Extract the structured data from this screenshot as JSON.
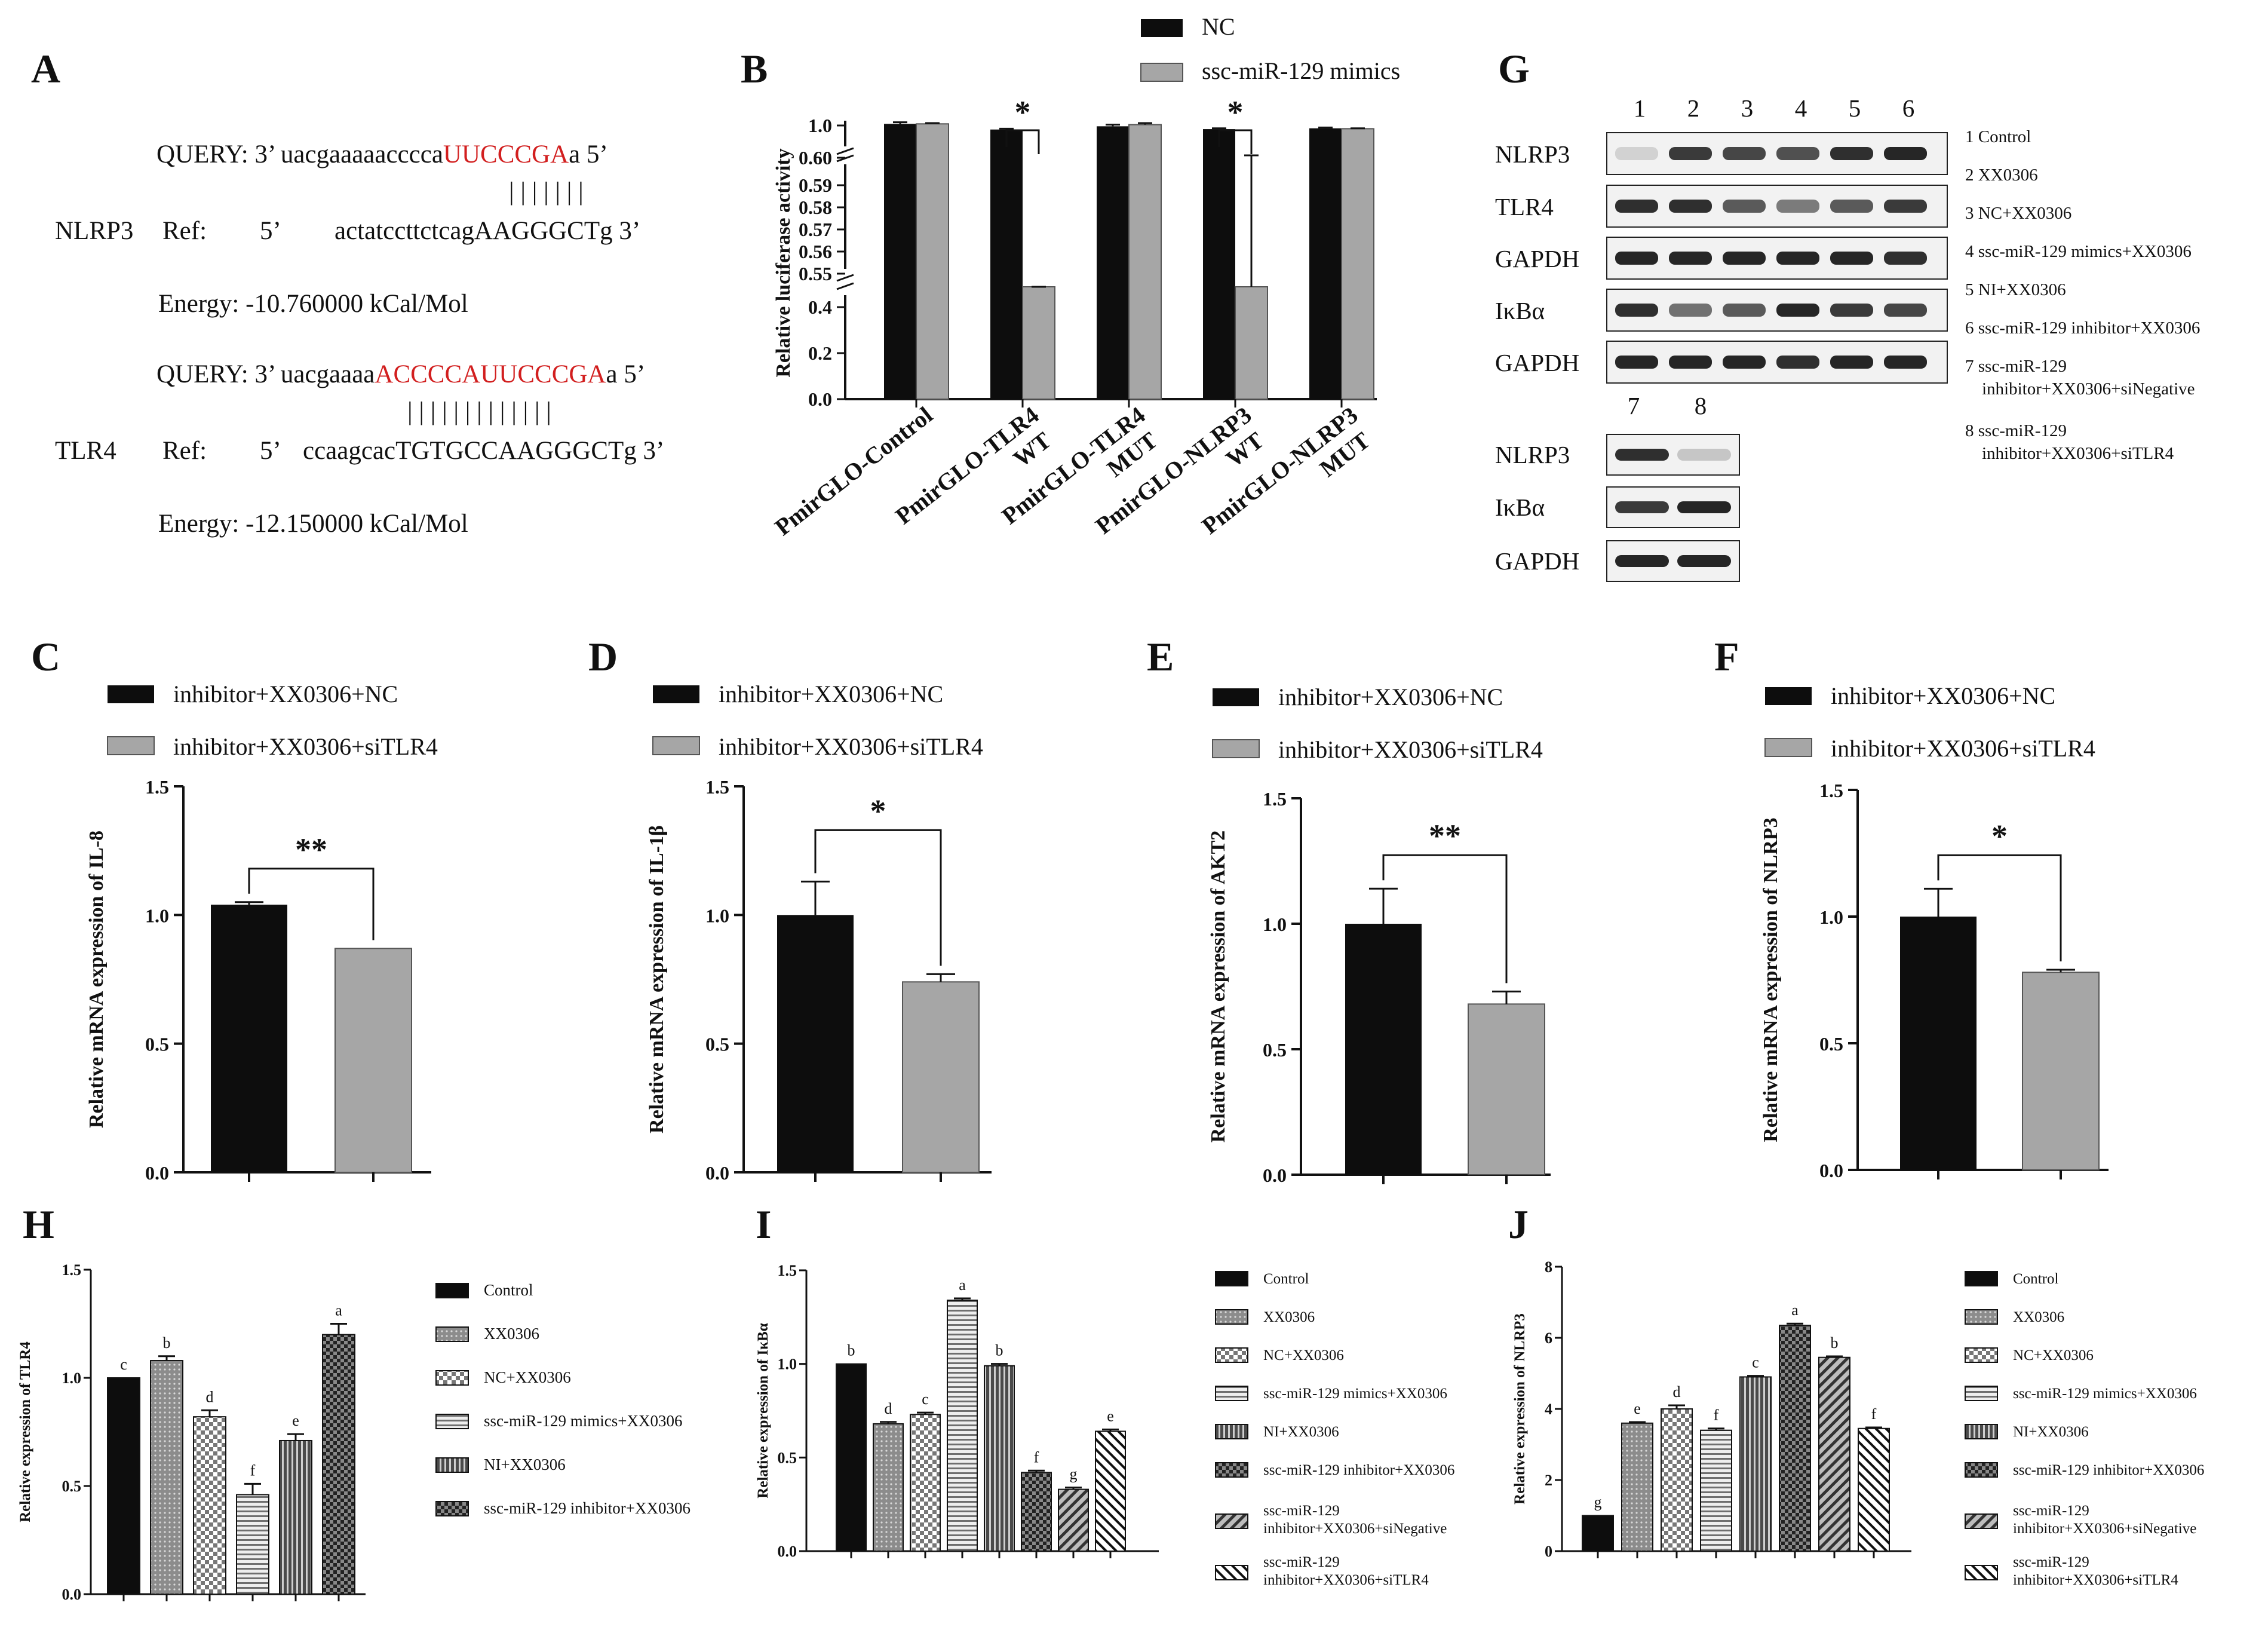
{
  "panel_letters": {
    "A": "A",
    "B": "B",
    "C": "C",
    "D": "D",
    "E": "E",
    "F": "F",
    "G": "G",
    "H": "H",
    "I": "I",
    "J": "J"
  },
  "panel_a": {
    "nlrp3": {
      "query_prefix": "QUERY: 3’",
      "query_seq_black": "uacgaaaaacccca",
      "query_seq_red": "UUCCCGA",
      "query_seq_end": "a",
      "query_end": "5’",
      "pairs": "| | | | | | |",
      "gene": "NLRP3",
      "ref_label": "Ref:",
      "ref_prefix": "5’",
      "ref_seq": "actatccttctcagAAGGGCTg",
      "ref_end": "3’",
      "energy": "Energy:  -10.760000 kCal/Mol"
    },
    "tlr4": {
      "query_prefix": "QUERY: 3’",
      "query_seq_black": "uacgaaaa",
      "query_seq_red": "ACCCCAUUCCCGA",
      "query_seq_end": "a",
      "query_end": "5’",
      "pairs": "| | | | | | | | | | | | |",
      "gene": "TLR4",
      "ref_label": "Ref:",
      "ref_prefix": "5’",
      "ref_seq": "ccaagcacTGTGCCAAGGGCTg",
      "ref_end": "3’",
      "energy": "Energy:  -12.150000 kCal/Mol"
    }
  },
  "panel_g": {
    "lane_numbers_top": [
      "1",
      "2",
      "3",
      "4",
      "5",
      "6"
    ],
    "lane_numbers_bottom": [
      "7",
      "8"
    ],
    "rows_top": [
      "NLRP3",
      "TLR4",
      "GAPDH",
      "IκBα",
      "GAPDH"
    ],
    "rows_bottom": [
      "NLRP3",
      "IκBα",
      "GAPDH"
    ],
    "legend": [
      {
        "num": "1",
        "lines": [
          "Control"
        ]
      },
      {
        "num": "2",
        "lines": [
          "XX0306"
        ]
      },
      {
        "num": "3",
        "lines": [
          "NC+XX0306"
        ]
      },
      {
        "num": "4",
        "lines": [
          "ssc-miR-129 mimics+XX0306"
        ]
      },
      {
        "num": "5",
        "lines": [
          "NI+XX0306"
        ]
      },
      {
        "num": "6",
        "lines": [
          "ssc-miR-129 inhibitor+XX0306"
        ]
      },
      {
        "num": "7",
        "lines": [
          "ssc-miR-129",
          "inhibitor+XX0306+siNegative"
        ]
      },
      {
        "num": "8",
        "lines": [
          "ssc-miR-129",
          "inhibitor+XX0306+siTLR4"
        ]
      }
    ]
  },
  "chart_data": [
    {
      "id": "B",
      "type": "bar",
      "ylabel": "Relative luciferase activity",
      "legend": [
        "NC",
        "ssc-miR-129 mimics"
      ],
      "categories": [
        [
          "PmirGLO-Control"
        ],
        [
          "PmirGLO-TLR4",
          "WT"
        ],
        [
          "PmirGLO-TLR4",
          "MUT"
        ],
        [
          "PmirGLO-NLRP3",
          "WT"
        ],
        [
          "PmirGLO-NLRP3",
          "MUT"
        ]
      ],
      "series": [
        {
          "name": "NC",
          "values": [
            1.02,
            0.95,
            0.99,
            0.955,
            0.965
          ],
          "errors": [
            0.02,
            0.01,
            0.02,
            0.01,
            0.01
          ]
        },
        {
          "name": "ssc-miR-129 mimics",
          "values": [
            1.02,
            0.505,
            1.01,
            0.51,
            0.96
          ],
          "errors": [
            0.01,
            0.02,
            0.02,
            0.12,
            0.005
          ]
        }
      ],
      "y_broken_ticks": [
        "0.0",
        "0.2",
        "0.4",
        "0.55",
        "0.56",
        "0.57",
        "0.58",
        "0.59",
        "0.60",
        "1.0"
      ],
      "significance": [
        {
          "category": 1,
          "label": "*"
        },
        {
          "category": 3,
          "label": "*"
        }
      ]
    },
    {
      "id": "C",
      "type": "bar",
      "ylabel": "Relative mRNA expression of IL-8",
      "legend": [
        "inhibitor+XX0306+NC",
        "inhibitor+XX0306+siTLR4"
      ],
      "values": [
        1.04,
        0.87
      ],
      "errors": [
        0.01,
        0.0
      ],
      "ylim": [
        0,
        1.5
      ],
      "yticks": [
        "0.0",
        "0.5",
        "1.0",
        "1.5"
      ],
      "significance": "**"
    },
    {
      "id": "D",
      "type": "bar",
      "ylabel": "Relative mRNA expression of IL-1β",
      "legend": [
        "inhibitor+XX0306+NC",
        "inhibitor+XX0306+siTLR4"
      ],
      "values": [
        1.0,
        0.74
      ],
      "errors": [
        0.13,
        0.03
      ],
      "ylim": [
        0,
        1.5
      ],
      "yticks": [
        "0.0",
        "0.5",
        "1.0",
        "1.5"
      ],
      "significance": "*"
    },
    {
      "id": "E",
      "type": "bar",
      "ylabel": "Relative mRNA expression of AKT2",
      "legend": [
        "inhibitor+XX0306+NC",
        "inhibitor+XX0306+siTLR4"
      ],
      "values": [
        1.0,
        0.68
      ],
      "errors": [
        0.14,
        0.05
      ],
      "ylim": [
        0,
        1.5
      ],
      "yticks": [
        "0.0",
        "0.5",
        "1.0",
        "1.5"
      ],
      "significance": "**"
    },
    {
      "id": "F",
      "type": "bar",
      "ylabel": "Relative mRNA expression of NLRP3",
      "legend": [
        "inhibitor+XX0306+NC",
        "inhibitor+XX0306+siTLR4"
      ],
      "values": [
        1.0,
        0.78
      ],
      "errors": [
        0.11,
        0.01
      ],
      "ylim": [
        0,
        1.5
      ],
      "yticks": [
        "0.0",
        "0.5",
        "1.0",
        "1.5"
      ],
      "significance": "*"
    },
    {
      "id": "H",
      "type": "bar",
      "ylabel": "Relative expression of TLR4",
      "categories": [
        "Control",
        "XX0306",
        "NC+XX0306",
        "ssc-miR-129 mimics+XX0306",
        "NI+XX0306",
        "ssc-miR-129 inhibitor+XX0306"
      ],
      "values": [
        1.0,
        1.08,
        0.82,
        0.46,
        0.71,
        1.2
      ],
      "errors": [
        0.0,
        0.02,
        0.03,
        0.05,
        0.03,
        0.05
      ],
      "letters": [
        "c",
        "b",
        "d",
        "f",
        "e",
        "a"
      ],
      "ylim": [
        0,
        1.5
      ],
      "yticks": [
        "0.0",
        "0.5",
        "1.0",
        "1.5"
      ]
    },
    {
      "id": "I",
      "type": "bar",
      "ylabel": "Relative expression of IκBα",
      "categories": [
        "Control",
        "XX0306",
        "NC+XX0306",
        "ssc-miR-129 mimics+XX0306",
        "NI+XX0306",
        "ssc-miR-129 inhibitor+XX0306",
        "ssc-miR-129 inhibitor+XX0306+siNegative",
        "ssc-miR-129 inhibitor+XX0306+siTLR4"
      ],
      "values": [
        1.0,
        0.68,
        0.73,
        1.34,
        0.99,
        0.42,
        0.33,
        0.64
      ],
      "errors": [
        0.0,
        0.01,
        0.01,
        0.01,
        0.01,
        0.01,
        0.01,
        0.01
      ],
      "letters": [
        "b",
        "d",
        "c",
        "a",
        "b",
        "f",
        "g",
        "e"
      ],
      "ylim": [
        0,
        1.5
      ],
      "yticks": [
        "0.0",
        "0.5",
        "1.0",
        "1.5"
      ]
    },
    {
      "id": "J",
      "type": "bar",
      "ylabel": "Relative expression of NLRP3",
      "categories": [
        "Control",
        "XX0306",
        "NC+XX0306",
        "ssc-miR-129 mimics+XX0306",
        "NI+XX0306",
        "ssc-miR-129 inhibitor+XX0306",
        "ssc-miR-129 inhibitor+XX0306+siNegative",
        "ssc-miR-129 inhibitor+XX0306+siTLR4"
      ],
      "values": [
        1.0,
        3.6,
        4.0,
        3.4,
        4.9,
        6.35,
        5.45,
        3.45
      ],
      "errors": [
        0.0,
        0.03,
        0.1,
        0.05,
        0.03,
        0.05,
        0.03,
        0.03
      ],
      "letters": [
        "g",
        "e",
        "d",
        "f",
        "c",
        "a",
        "b",
        "f"
      ],
      "ylim": [
        0,
        8
      ],
      "yticks": [
        "0",
        "2",
        "4",
        "6",
        "8"
      ]
    }
  ],
  "colors": {
    "black": "#0d0d0d",
    "gray": "#a6a6a6",
    "red": "#d21f1f"
  }
}
